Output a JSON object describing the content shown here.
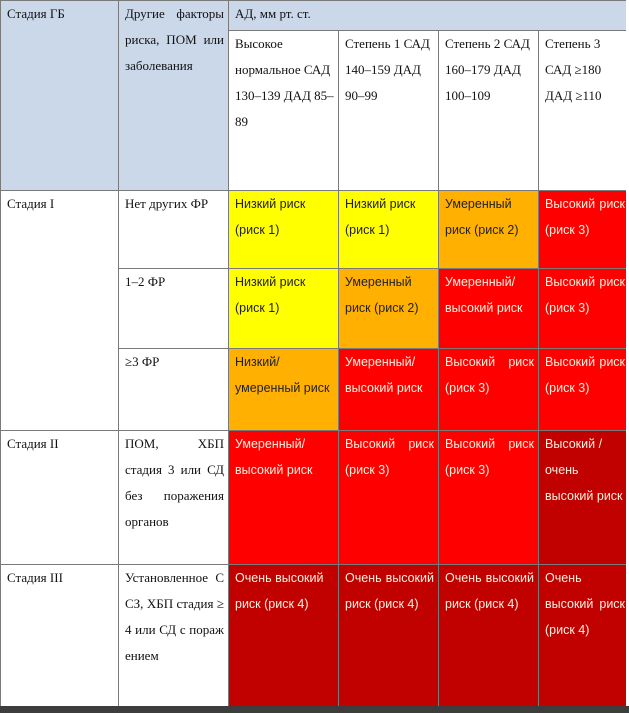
{
  "header": {
    "stage_col": "Стадия ГБ",
    "factors_col": "Другие факторы риска, ПОМ или заболевания",
    "bp_title": "АД, мм рт. ст.",
    "bp_cols": [
      "Высокое нормальное САД 130–139 ДАД 85–89",
      "Степень 1 САД 140–159 ДАД 90–99",
      "Степень 2 САД 160–179 ДАД 100–109",
      "Степень 3 САД ≥180 ДАД ≥110"
    ]
  },
  "rows": [
    {
      "stage": "Стадия I",
      "factors": "Нет других ФР",
      "cells": [
        "Низкий риск (риск 1)",
        "Низкий риск (риск 1)",
        "Умеренный риск (риск 2)",
        "Высокий риск (риск 3)"
      ],
      "levels": [
        "y",
        "y",
        "o",
        "r"
      ]
    },
    {
      "stage": "",
      "factors": "1–2 ФР",
      "cells": [
        "Низкий риск (риск 1)",
        "Умеренный риск (риск 2)",
        "Умеренный/ высокий риск",
        "Высокий риск (риск 3)"
      ],
      "levels": [
        "y",
        "o",
        "r",
        "r"
      ]
    },
    {
      "stage": "",
      "factors": "≥3 ФР",
      "cells": [
        "Низкий/ умеренный риск",
        "Умеренный/ высокий риск",
        "Высокий риск (риск 3)",
        "Высокий риск (риск 3)"
      ],
      "levels": [
        "o",
        "r",
        "r",
        "r"
      ]
    },
    {
      "stage": "Стадия II",
      "factors": "ПОМ, ХБП стадия 3 или СД без поражения органов",
      "cells": [
        "Умеренный/ высокий риск",
        "Высокий риск (риск 3)",
        "Высокий риск (риск 3)",
        "Высокий / очень высокий риск"
      ],
      "levels": [
        "r",
        "r",
        "r",
        "dr"
      ]
    },
    {
      "stage": "Стадия III",
      "factors": "Установленное ССЗ, ХБП стадия ≥4 или СД с поражением",
      "cells": [
        "Очень высокий риск (риск 4)",
        "Очень высокий риск (риск 4)",
        "Очень высокий риск (риск 4)",
        "Очень высокий риск (риск 4)"
      ],
      "levels": [
        "dr",
        "dr",
        "dr",
        "dr"
      ]
    }
  ],
  "colors": {
    "header_bg": "#cad8ea",
    "low_risk": "#ffff00",
    "moderate_risk": "#ffb000",
    "high_risk": "#ff0000",
    "very_high_risk": "#c10000"
  }
}
